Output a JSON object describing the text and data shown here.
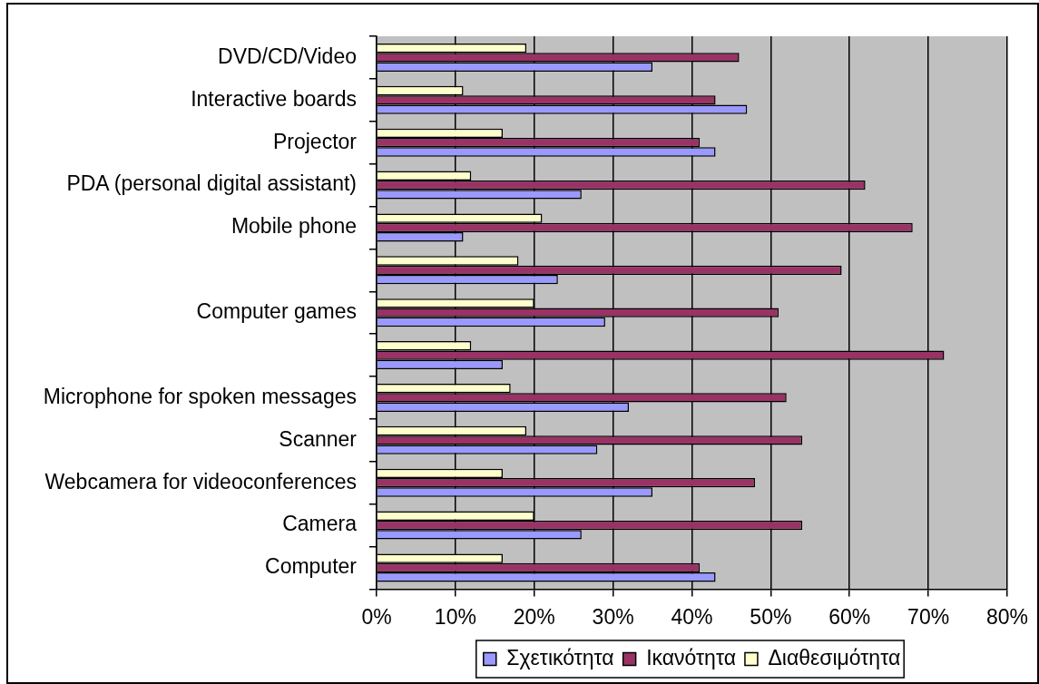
{
  "chart_data": {
    "type": "bar",
    "orientation": "horizontal",
    "categories": [
      "DVD/CD/Video",
      "Interactive boards",
      "Projector",
      "PDA (personal digital assistant)",
      "Mobile phone",
      null,
      "Computer games",
      null,
      "Microphone for spoken messages",
      "Scanner",
      "Webcamera for videoconferences",
      "Camera",
      "Computer"
    ],
    "series": [
      {
        "name": "Σχετικότητα",
        "color": "#9999ff",
        "values": [
          35,
          47,
          43,
          26,
          11,
          23,
          29,
          16,
          32,
          28,
          35,
          26,
          43
        ]
      },
      {
        "name": "Ικανότητα",
        "color": "#993366",
        "values": [
          46,
          43,
          41,
          62,
          68,
          59,
          51,
          72,
          52,
          54,
          48,
          54,
          41
        ]
      },
      {
        "name": "Διαθεσιμότητα",
        "color": "#ffffcc",
        "values": [
          19,
          11,
          16,
          12,
          21,
          18,
          20,
          12,
          17,
          19,
          16,
          20,
          16
        ]
      }
    ],
    "xlim": [
      0,
      80
    ],
    "xticks": [
      {
        "value": 0,
        "label": "0%"
      },
      {
        "value": 10,
        "label": "10%"
      },
      {
        "value": 20,
        "label": "20%"
      },
      {
        "value": 30,
        "label": "30%"
      },
      {
        "value": 40,
        "label": "40%"
      },
      {
        "value": 50,
        "label": "50%"
      },
      {
        "value": 60,
        "label": "60%"
      },
      {
        "value": 70,
        "label": "70%"
      },
      {
        "value": 80,
        "label": "80%"
      }
    ],
    "grid": "x",
    "legend": "bottom"
  }
}
